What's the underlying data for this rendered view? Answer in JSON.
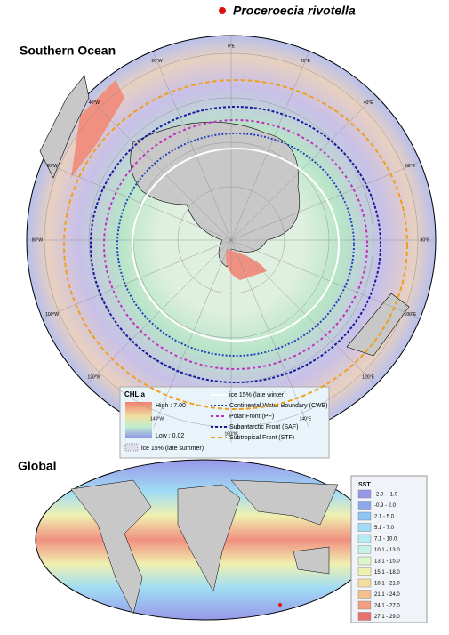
{
  "title": "Proceroecia rivotella",
  "marker_color": "#e01010",
  "southern_ocean": {
    "title": "Southern Ocean",
    "longitude_labels": [
      "0°E",
      "20°E",
      "40°E",
      "60°E",
      "80°E",
      "100°E",
      "120°E",
      "140°E",
      "160°W",
      "140°W",
      "120°W",
      "100°W",
      "80°W",
      "60°W",
      "40°W",
      "20°W"
    ]
  },
  "chl_legend": {
    "title": "CHL a",
    "high": "High : 7.00",
    "low": "Low : 0.02",
    "ice_summer": "ice 15% (late summer)"
  },
  "line_legend": [
    {
      "label": "ice 15% (late winter)",
      "color": "#ffffff"
    },
    {
      "label": "Continental Water Boundary (CWB)",
      "color": "#2040c0"
    },
    {
      "label": "Polar Front (PF)",
      "color": "#c030c0"
    },
    {
      "label": "Subantarctic Front (SAF)",
      "color": "#1818a0"
    },
    {
      "label": "Subtropical Front (STF)",
      "color": "#f0a020"
    }
  ],
  "global": {
    "title": "Global"
  },
  "sst_legend": {
    "title": "SST",
    "classes": [
      {
        "label": "-2.0 - -1.0",
        "color": "#9898e8"
      },
      {
        "label": "-0.9 - 2.0",
        "color": "#8ca8ec"
      },
      {
        "label": "2.1 - 5.0",
        "color": "#8cc4f2"
      },
      {
        "label": "5.1 - 7.0",
        "color": "#a0dcf5"
      },
      {
        "label": "7.1 - 10.0",
        "color": "#b4ecf2"
      },
      {
        "label": "10.1 - 13.0",
        "color": "#c8f2e4"
      },
      {
        "label": "13.1 - 15.0",
        "color": "#dcf5cc"
      },
      {
        "label": "15.1 - 18.0",
        "color": "#f0f0b0"
      },
      {
        "label": "18.1 - 21.0",
        "color": "#f5dca0"
      },
      {
        "label": "21.1 - 24.0",
        "color": "#f5c08c"
      },
      {
        "label": "24.1 - 27.0",
        "color": "#f0a080"
      },
      {
        "label": "27.1 - 29.0",
        "color": "#e87070"
      }
    ]
  }
}
